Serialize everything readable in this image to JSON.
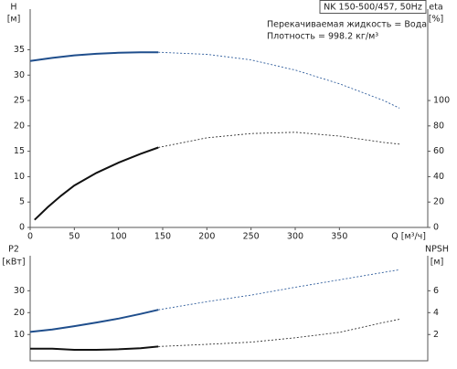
{
  "chart_data": [
    {
      "type": "line",
      "ylabel": "H",
      "yunit": "[м]",
      "y2label": "eta",
      "y2unit": "[%]",
      "xlabel": "Q [м³/ч]",
      "title": "NK 150-500/457, 50Hz",
      "annotations": [
        "Перекачиваемая жидкость = Вода",
        "Плотность = 998.2 кг/м³"
      ],
      "xlim": [
        0,
        450
      ],
      "xticks": [
        0,
        50,
        100,
        150,
        200,
        250,
        300,
        350
      ],
      "ylim": [
        0,
        43
      ],
      "yticks": [
        0,
        5,
        10,
        15,
        20,
        25,
        30,
        35
      ],
      "y2lim": [
        0,
        172
      ],
      "y2ticks": [
        0,
        20,
        40,
        60,
        80,
        100
      ],
      "grid": false,
      "series": [
        {
          "color": "#1f4e8c",
          "dashed": false,
          "x": [
            0,
            25,
            50,
            75,
            100,
            125,
            145
          ],
          "values": [
            32.8,
            33.4,
            33.9,
            34.2,
            34.4,
            34.5,
            34.5
          ]
        },
        {
          "color": "#2f5d9c",
          "dashed": true,
          "x": [
            145,
            200,
            250,
            300,
            350,
            400,
            418
          ],
          "values": [
            34.5,
            34.1,
            33.0,
            31.0,
            28.3,
            25.0,
            23.5
          ]
        },
        {
          "color": "#111111",
          "dashed": false,
          "axis": "y2",
          "x": [
            5,
            20,
            35,
            50,
            75,
            100,
            125,
            145
          ],
          "values": [
            6,
            16,
            25,
            33,
            43,
            51,
            58,
            63
          ]
        },
        {
          "color": "#333333",
          "dashed": true,
          "axis": "y2",
          "x": [
            145,
            200,
            250,
            300,
            350,
            400,
            418
          ],
          "values": [
            63,
            70.6,
            74,
            75,
            72,
            67,
            65.6
          ]
        }
      ]
    },
    {
      "type": "line",
      "ylabel": "P2",
      "yunit": "[кВт]",
      "y2label": "NPSH",
      "y2unit": "[м]",
      "xlim": [
        0,
        450
      ],
      "ylim": [
        -2,
        46
      ],
      "yticks": [
        10,
        20,
        30
      ],
      "y2lim": [
        -0.4,
        9.2
      ],
      "y2ticks": [
        2,
        4,
        6
      ],
      "grid": false,
      "series": [
        {
          "color": "#1f4e8c",
          "dashed": false,
          "x": [
            0,
            25,
            50,
            75,
            100,
            125,
            145
          ],
          "values": [
            11.2,
            12.3,
            13.8,
            15.5,
            17.3,
            19.4,
            21.3
          ]
        },
        {
          "color": "#2f5d9c",
          "dashed": true,
          "x": [
            145,
            200,
            250,
            300,
            350,
            400,
            418
          ],
          "values": [
            21.3,
            25,
            28,
            31.6,
            35,
            38.4,
            39.6
          ]
        },
        {
          "color": "#111111",
          "dashed": false,
          "axis": "y2",
          "x": [
            0,
            25,
            50,
            75,
            100,
            125,
            145
          ],
          "values": [
            0.7,
            0.7,
            0.6,
            0.6,
            0.65,
            0.75,
            0.9
          ]
        },
        {
          "color": "#333333",
          "dashed": true,
          "axis": "y2",
          "x": [
            145,
            200,
            250,
            300,
            350,
            400,
            418
          ],
          "values": [
            0.9,
            1.1,
            1.3,
            1.7,
            2.2,
            3.1,
            3.4
          ]
        }
      ]
    }
  ]
}
